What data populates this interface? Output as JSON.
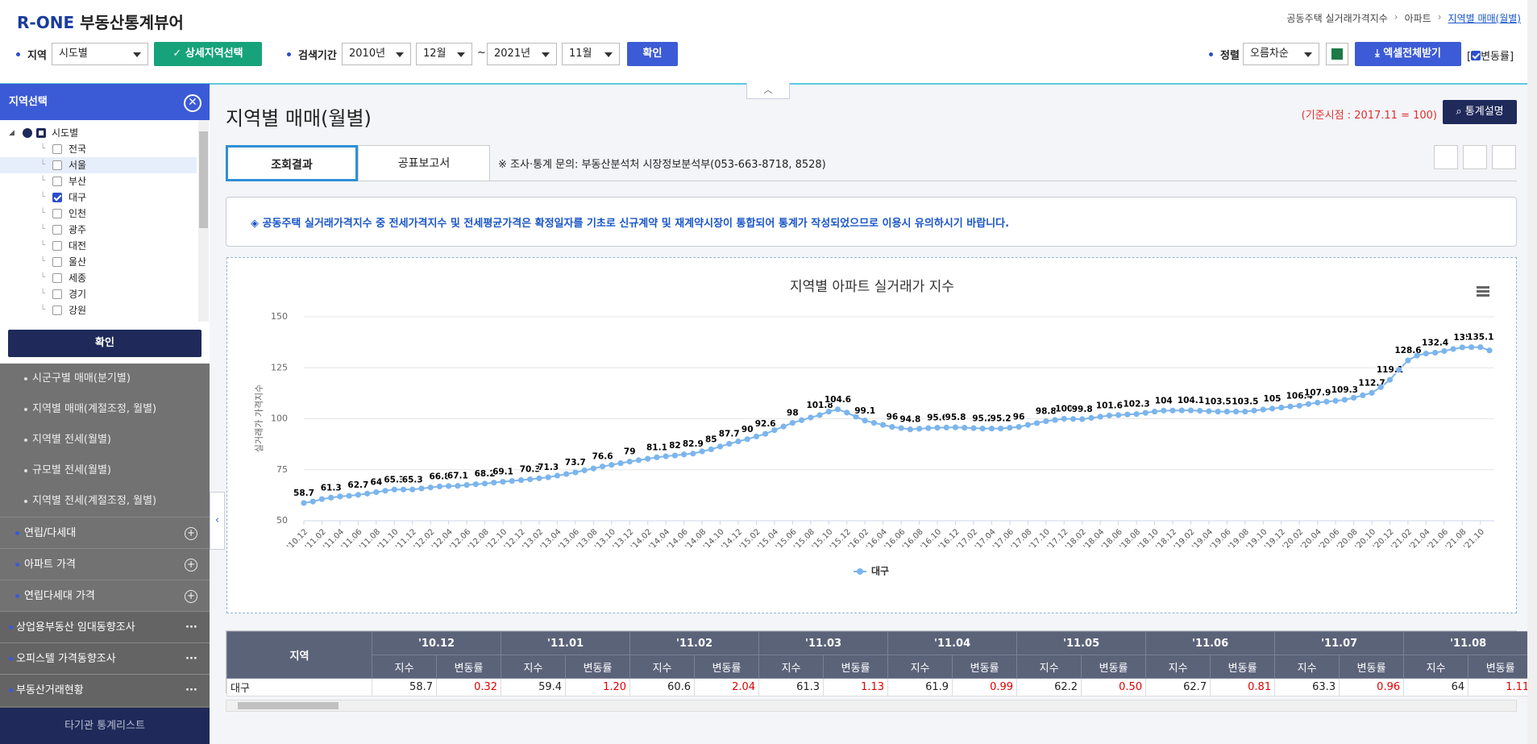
{
  "header": {
    "logo": "R-ONE",
    "app_name": "부동산통계뷰어",
    "breadcrumb": [
      "공동주택 실거래가격지수",
      "아파트",
      "지역별 매매(월별)"
    ]
  },
  "filters": {
    "region_label": "지역",
    "region_select": "시도별",
    "detail_button": "상세지역선택",
    "period_label": "검색기간",
    "start_year": "2010년",
    "start_month": "12월",
    "range_sep": "~",
    "end_year": "2021년",
    "end_month": "11월",
    "confirm": "확인",
    "sort_label": "정렬",
    "sort_select": "오름차순",
    "excel_button": "엑셀전체받기",
    "change_rate_checkbox": "변동률"
  },
  "sidebar": {
    "panel_title": "지역선택",
    "tree_root": "시도별",
    "regions": [
      {
        "label": "전국",
        "checked": false
      },
      {
        "label": "서울",
        "checked": false
      },
      {
        "label": "부산",
        "checked": false
      },
      {
        "label": "대구",
        "checked": true
      },
      {
        "label": "인천",
        "checked": false
      },
      {
        "label": "광주",
        "checked": false
      },
      {
        "label": "대전",
        "checked": false
      },
      {
        "label": "울산",
        "checked": false
      },
      {
        "label": "세종",
        "checked": false
      },
      {
        "label": "경기",
        "checked": false
      },
      {
        "label": "강원",
        "checked": false
      }
    ],
    "confirm": "확인",
    "submenu": [
      "시군구별 매매(분기별)",
      "지역별 매매(계절조정, 월별)",
      "지역별 전세(월별)",
      "규모별 전세(월별)",
      "지역별 전세(계절조정, 월별)"
    ],
    "groups": [
      "연립/다세대",
      "아파트 가격",
      "연립다세대 가격"
    ],
    "sections": [
      "상업용부동산 임대동향조사",
      "오피스텔 가격동향조사",
      "부동산거래현황"
    ],
    "footer": "타기관 통계리스트"
  },
  "main": {
    "title": "지역별 매매(월별)",
    "base_note": "(기준시점 : 2017.11 = 100)",
    "stat_button": "통계설명",
    "tabs": [
      "조회결과",
      "공표보고서"
    ],
    "contact": "※ 조사·통계 문의: 부동산분석처 시장정보분석부(053-663-8718, 8528)",
    "notice": "◈ 공동주택 실거래가격지수 중 전세가격지수 및 전세평균가격은 확정일자를 기초로 신규계약 및 재계약시장이 통합되어 통계가 작성되었으므로 이용시 유의하시기 바랍니다."
  },
  "chart_data": {
    "type": "line",
    "title": "지역별 아파트 실거래가 지수",
    "y_label": "실거래가 가격지수",
    "legend": "bottom",
    "grid": true,
    "ylim": [
      50,
      150
    ],
    "yticks": [
      50,
      75,
      100,
      125,
      150
    ],
    "categories": [
      "'10.12",
      null,
      "'11.02",
      null,
      "'11.04",
      null,
      "'11.06",
      null,
      "'11.08",
      null,
      "'11.10",
      null,
      "'11.12",
      null,
      "'12.02",
      null,
      "'12.04",
      null,
      "'12.06",
      null,
      "'12.08",
      null,
      "'12.10",
      null,
      "'12.12",
      null,
      "'13.02",
      null,
      "'13.04",
      null,
      "'13.06",
      null,
      "'13.08",
      null,
      "'13.10",
      null,
      "'13.12",
      null,
      "'14.02",
      null,
      "'14.04",
      null,
      "'14.06",
      null,
      "'14.08",
      null,
      "'14.10",
      null,
      "'14.12",
      null,
      "'15.02",
      null,
      "'15.04",
      null,
      "'15.06",
      null,
      "'15.08",
      null,
      "'15.10",
      null,
      "'15.12",
      null,
      "'16.02",
      null,
      "'16.04",
      null,
      "'16.06",
      null,
      "'16.08",
      null,
      "'16.10",
      null,
      "'16.12",
      null,
      "'17.02",
      null,
      "'17.04",
      null,
      "'17.06",
      null,
      "'17.08",
      null,
      "'17.10",
      null,
      "'17.12",
      null,
      "'18.02",
      null,
      "'18.04",
      null,
      "'18.06",
      null,
      "'18.08",
      null,
      "'18.10",
      null,
      "'18.12",
      null,
      "'19.02",
      null,
      "'19.04",
      null,
      "'19.06",
      null,
      "'19.08",
      null,
      "'19.10",
      null,
      "'19.12",
      null,
      "'20.02",
      null,
      "'20.04",
      null,
      "'20.06",
      null,
      "'20.08",
      null,
      "'20.10",
      null,
      "'20.12",
      null,
      "'21.02",
      null,
      "'21.04",
      null,
      "'21.06",
      null,
      "'21.08",
      null,
      "'21.10",
      null
    ],
    "series": [
      {
        "name": "대구",
        "color": "#7cb5ec",
        "values": [
          58.7,
          59.4,
          60.6,
          61.3,
          61.9,
          62.2,
          62.7,
          63.3,
          64,
          64.7,
          65.3,
          65.3,
          65.3,
          65.8,
          66.3,
          66.8,
          67.0,
          67.1,
          67.5,
          67.9,
          68.2,
          68.7,
          69.1,
          69.5,
          69.9,
          70.3,
          70.8,
          71.3,
          72.1,
          72.9,
          73.7,
          74.7,
          75.6,
          76.6,
          77.4,
          78.2,
          79,
          79.7,
          80.4,
          81.1,
          81.6,
          82,
          82.5,
          82.9,
          84.0,
          85,
          86.4,
          87.7,
          88.9,
          90,
          91.3,
          92.6,
          94.4,
          96.2,
          98,
          99.3,
          100.6,
          101.8,
          103.5,
          104.6,
          103.0,
          101.0,
          99.1,
          98.0,
          97.0,
          96,
          95.4,
          94.8,
          95.1,
          95.4,
          95.6,
          95.7,
          95.8,
          95.6,
          95.4,
          95.2,
          95.2,
          95.2,
          95.6,
          96,
          97.0,
          97.9,
          98.8,
          99.4,
          100,
          99.9,
          99.8,
          100.4,
          101.0,
          101.6,
          101.8,
          102.1,
          102.3,
          102.9,
          103.5,
          104,
          104.0,
          104.1,
          104.1,
          103.9,
          103.7,
          103.5,
          103.5,
          103.5,
          103.5,
          104.0,
          104.5,
          105,
          105.5,
          106.0,
          106.4,
          107.2,
          107.9,
          108.4,
          108.8,
          109.3,
          110.3,
          111.5,
          112.7,
          115.5,
          119.1,
          124.0,
          128.6,
          131.0,
          132.0,
          132.4,
          133.2,
          134.2,
          135,
          135.1,
          135.1,
          133.5
        ],
        "value_labels": [
          "58.7",
          null,
          null,
          "61.3",
          null,
          null,
          "62.7",
          null,
          "64",
          null,
          "65.3",
          null,
          "65.3",
          null,
          null,
          "66.8",
          null,
          "67.1",
          null,
          null,
          "68.2",
          null,
          "69.1",
          null,
          null,
          "70.3",
          null,
          "71.3",
          null,
          null,
          "73.7",
          null,
          null,
          "76.6",
          null,
          null,
          "79",
          null,
          null,
          "81.1",
          null,
          "82",
          null,
          "82.9",
          null,
          "85",
          null,
          "87.7",
          null,
          "90",
          null,
          "92.6",
          null,
          null,
          "98",
          null,
          null,
          "101.8",
          null,
          "104.6",
          null,
          null,
          "99.1",
          null,
          null,
          "96",
          null,
          "94.8",
          null,
          null,
          "95.6",
          null,
          "95.8",
          null,
          null,
          "95.2",
          null,
          "95.2",
          null,
          "96",
          null,
          null,
          "98.8",
          null,
          "100",
          null,
          "99.8",
          null,
          null,
          "101.6",
          null,
          null,
          "102.3",
          null,
          null,
          "104",
          null,
          null,
          "104.1",
          null,
          null,
          "103.5",
          null,
          null,
          "103.5",
          null,
          null,
          "105",
          null,
          null,
          "106.4",
          null,
          "107.9",
          null,
          null,
          "109.3",
          null,
          null,
          "112.7",
          null,
          "119.1",
          null,
          "128.6",
          null,
          null,
          "132.4",
          null,
          null,
          "135",
          null,
          "135.1",
          null
        ]
      }
    ]
  },
  "table": {
    "region_header": "지역",
    "months": [
      "'10.12",
      "'11.01",
      "'11.02",
      "'11.03",
      "'11.04",
      "'11.05",
      "'11.06",
      "'11.07",
      "'11.08"
    ],
    "sub_headers": [
      "지수",
      "변동률"
    ],
    "rows": [
      {
        "region": "대구",
        "cells": [
          [
            "58.7",
            "0.32"
          ],
          [
            "59.4",
            "1.20"
          ],
          [
            "60.6",
            "2.04"
          ],
          [
            "61.3",
            "1.13"
          ],
          [
            "61.9",
            "0.99"
          ],
          [
            "62.2",
            "0.50"
          ],
          [
            "62.7",
            "0.81"
          ],
          [
            "63.3",
            "0.96"
          ],
          [
            "64",
            "1.11"
          ]
        ]
      }
    ]
  }
}
